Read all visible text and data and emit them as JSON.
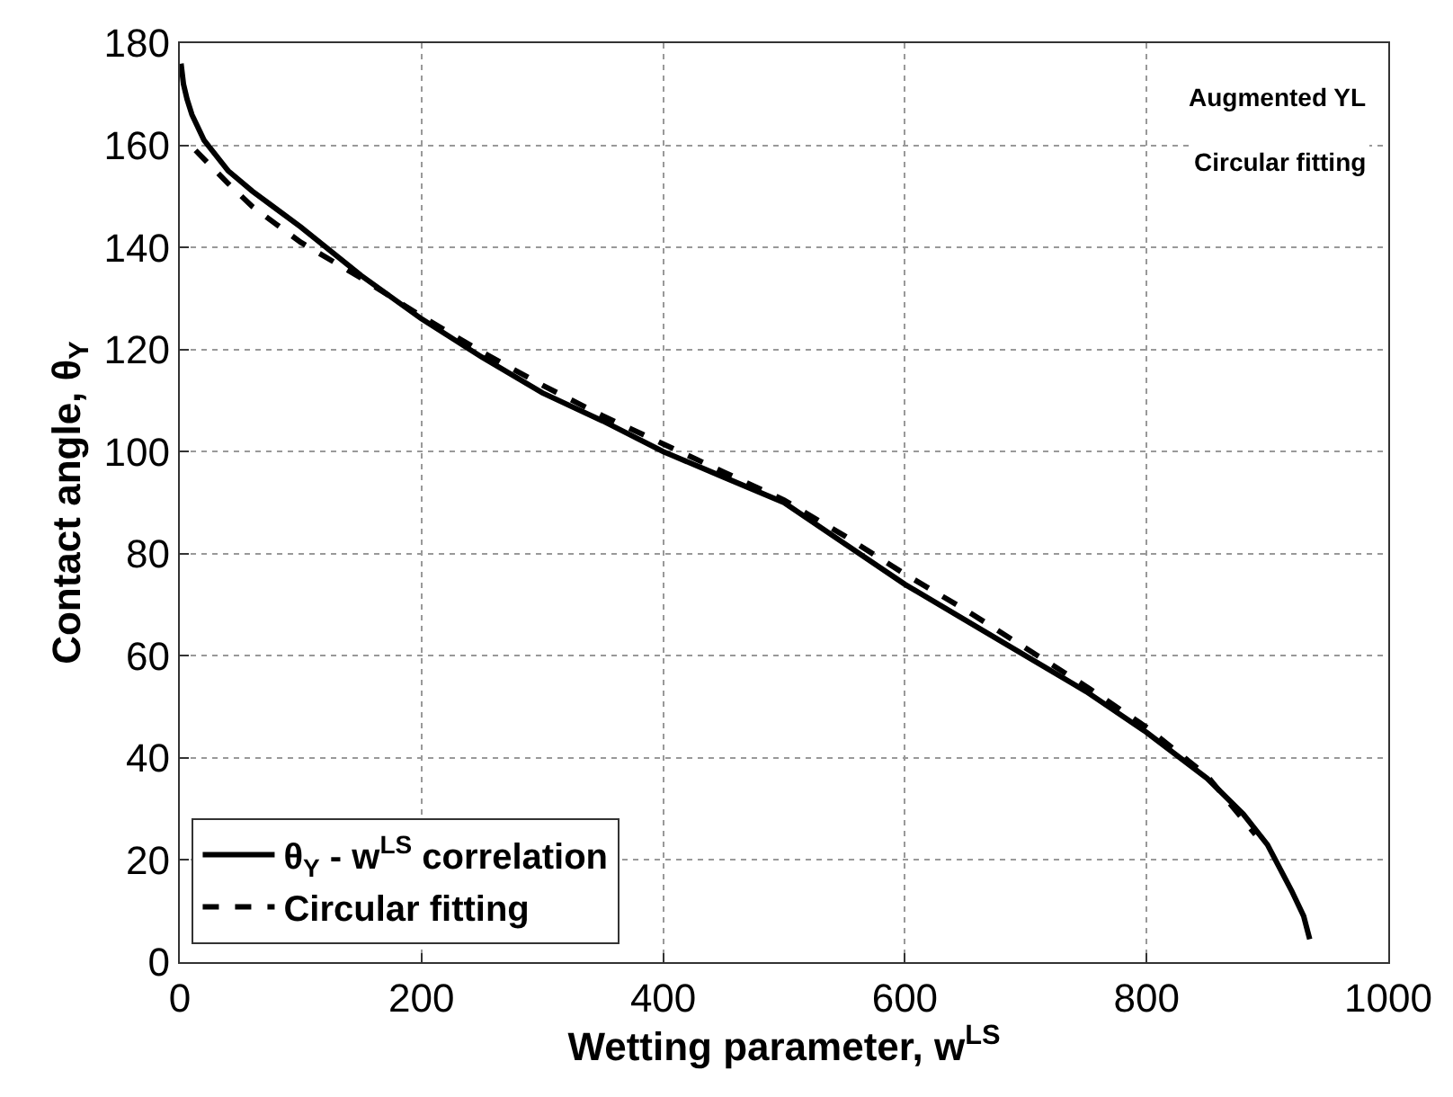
{
  "chart_data": {
    "type": "line",
    "xlabel": "Wetting parameter, w$^{LS}$",
    "ylabel": "Contact angle, θ$_{Y}$",
    "xlim": [
      0,
      1000
    ],
    "xticks": [
      0,
      200,
      400,
      600,
      800,
      1000
    ],
    "ylim": [
      0,
      180
    ],
    "yticks": [
      0,
      20,
      40,
      60,
      80,
      100,
      120,
      140,
      160,
      180
    ],
    "grid": true,
    "legend": "bottom left",
    "series": [
      {
        "name": "θ$_{Y}$ - w$^{LS}$ correlation",
        "color": "#000000",
        "line_style": "solid",
        "x": [
          1,
          3,
          6,
          10,
          20,
          40,
          60,
          80,
          100,
          150,
          200,
          250,
          300,
          350,
          400,
          450,
          500,
          550,
          600,
          650,
          700,
          750,
          800,
          850,
          880,
          900,
          920,
          930,
          935
        ],
        "values": [
          176,
          172,
          169,
          166,
          161,
          155,
          151,
          147.5,
          144,
          134.5,
          126,
          118.5,
          111.5,
          106,
          100,
          95,
          90,
          82,
          74,
          67,
          60,
          53,
          45,
          36,
          29,
          23,
          14,
          9,
          4.5
        ]
      },
      {
        "name": "Circular fitting",
        "color": "#000000",
        "line_style": "dashed",
        "x": [
          13,
          40,
          60,
          80,
          100,
          150,
          200,
          250,
          300,
          350,
          400,
          450,
          500,
          550,
          600,
          650,
          700,
          750,
          800,
          850,
          890
        ],
        "values": [
          159,
          152.5,
          148,
          144.5,
          141,
          134,
          126.5,
          119.5,
          113,
          107,
          101.5,
          96,
          90.5,
          83.5,
          76,
          69,
          61.5,
          54,
          46,
          36.5,
          25
        ]
      }
    ],
    "annotations": [
      "Augmented YL",
      "Circular fitting"
    ]
  }
}
